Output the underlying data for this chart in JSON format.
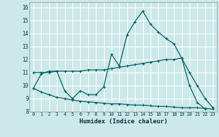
{
  "title": "",
  "xlabel": "Humidex (Indice chaleur)",
  "line_color": "#006060",
  "bg_color": "#cce8e8",
  "grid_color": "#ffffff",
  "xlim": [
    -0.5,
    23.5
  ],
  "ylim": [
    8,
    16.4
  ],
  "xticks": [
    0,
    1,
    2,
    3,
    4,
    5,
    6,
    7,
    8,
    9,
    10,
    11,
    12,
    13,
    14,
    15,
    16,
    17,
    18,
    19,
    20,
    21,
    22,
    23
  ],
  "yticks": [
    8,
    9,
    10,
    11,
    12,
    13,
    14,
    15,
    16
  ],
  "line1_x": [
    0,
    1,
    2,
    3,
    4,
    5,
    6,
    7,
    8,
    9,
    10,
    11,
    12,
    13,
    14,
    15,
    16,
    17,
    18,
    19,
    20,
    21,
    22
  ],
  "line1_y": [
    9.8,
    10.9,
    11.1,
    11.1,
    9.6,
    9.0,
    9.6,
    9.3,
    9.3,
    9.9,
    12.4,
    11.5,
    13.9,
    14.9,
    15.7,
    14.7,
    14.1,
    13.6,
    13.2,
    12.1,
    10.0,
    8.7,
    8.2
  ],
  "line2_x": [
    0,
    1,
    2,
    3,
    4,
    5,
    6,
    7,
    8,
    9,
    10,
    11,
    12,
    13,
    14,
    15,
    16,
    17,
    18,
    19,
    20,
    21,
    22,
    23
  ],
  "line2_y": [
    11.0,
    11.0,
    11.0,
    11.1,
    11.1,
    11.1,
    11.1,
    11.2,
    11.2,
    11.2,
    11.3,
    11.4,
    11.5,
    11.6,
    11.7,
    11.8,
    11.9,
    12.0,
    12.0,
    12.1,
    11.0,
    10.0,
    9.0,
    8.3
  ],
  "line3_x": [
    0,
    1,
    2,
    3,
    4,
    5,
    6,
    7,
    8,
    9,
    10,
    11,
    12,
    13,
    14,
    15,
    16,
    17,
    18,
    19,
    20,
    21,
    22,
    23
  ],
  "line3_y": [
    9.8,
    9.5,
    9.3,
    9.1,
    9.0,
    8.9,
    8.8,
    8.75,
    8.7,
    8.65,
    8.6,
    8.6,
    8.55,
    8.5,
    8.5,
    8.45,
    8.4,
    8.4,
    8.35,
    8.3,
    8.3,
    8.3,
    8.25,
    8.2
  ]
}
